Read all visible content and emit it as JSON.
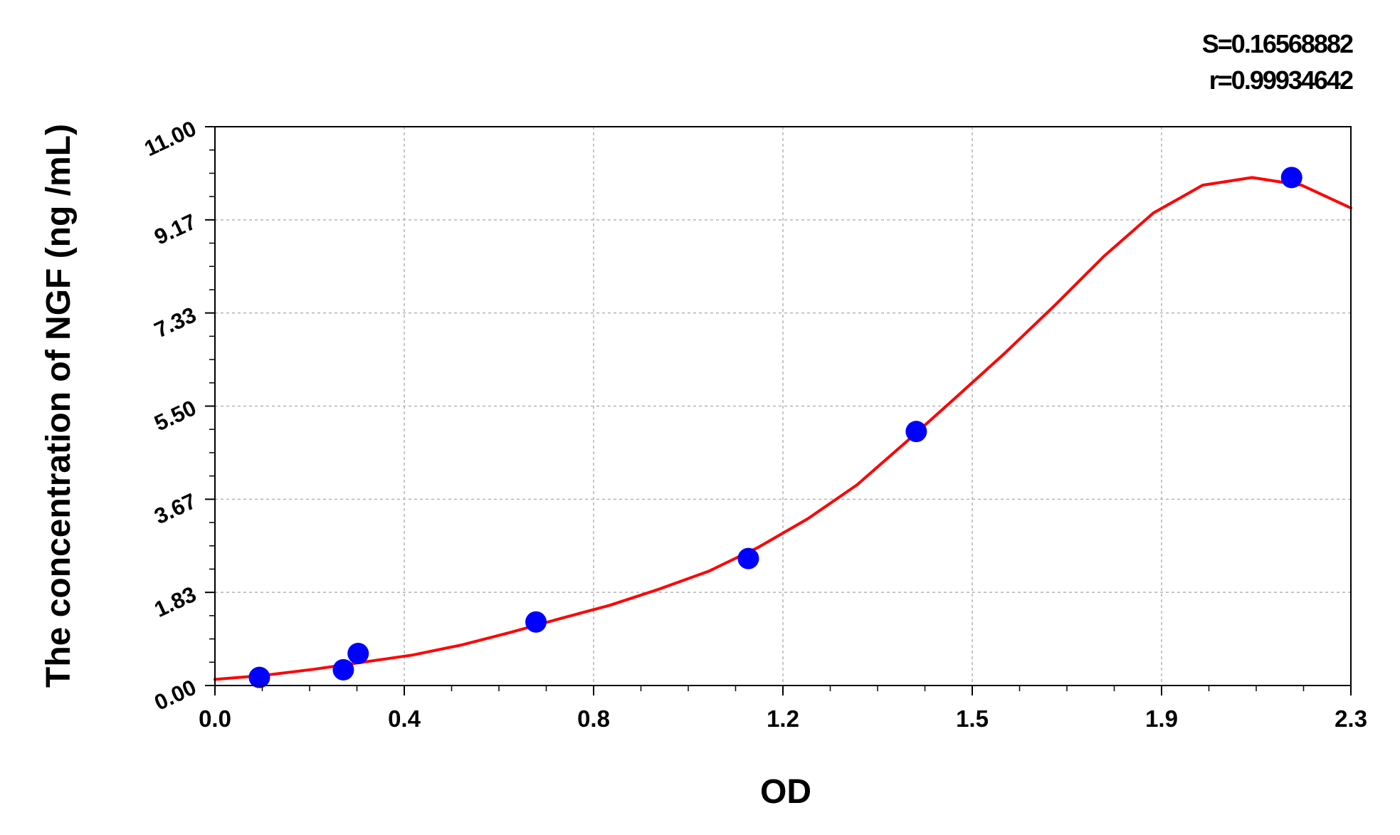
{
  "chart_data": {
    "type": "scatter",
    "xlabel": "OD",
    "ylabel": "The concentration of NGF (ng /mL)",
    "xlim": [
      0.0,
      2.3
    ],
    "ylim": [
      0.0,
      11.0
    ],
    "x_ticks": [
      "0.0",
      "0.4",
      "0.8",
      "1.2",
      "1.5",
      "1.9",
      "2.3"
    ],
    "y_ticks": [
      "0.00",
      "1.83",
      "3.67",
      "5.50",
      "7.33",
      "9.17",
      "11.00"
    ],
    "grid": true,
    "stats": {
      "s": "S=0.16568882",
      "r": "r=0.99934642"
    },
    "points": [
      {
        "x": 0.09,
        "y": 0.16
      },
      {
        "x": 0.26,
        "y": 0.31
      },
      {
        "x": 0.29,
        "y": 0.63
      },
      {
        "x": 0.65,
        "y": 1.25
      },
      {
        "x": 1.08,
        "y": 2.5
      },
      {
        "x": 1.42,
        "y": 5.0
      },
      {
        "x": 2.18,
        "y": 10.0
      }
    ],
    "fit_curve": {
      "x": [
        0.0,
        0.1,
        0.2,
        0.3,
        0.4,
        0.5,
        0.6,
        0.7,
        0.8,
        0.9,
        1.0,
        1.1,
        1.2,
        1.3,
        1.4,
        1.5,
        1.6,
        1.7,
        1.8,
        1.9,
        2.0,
        2.1,
        2.2,
        2.3
      ],
      "y": [
        0.12,
        0.2,
        0.32,
        0.46,
        0.6,
        0.8,
        1.05,
        1.32,
        1.58,
        1.9,
        2.25,
        2.72,
        3.28,
        3.95,
        4.8,
        5.67,
        6.55,
        7.48,
        8.45,
        9.3,
        9.85,
        10.0,
        9.85,
        9.4
      ]
    },
    "colors": {
      "points": "#0000ff",
      "curve": "#ff0000",
      "grid": "#b4b4b4",
      "axis": "#000000"
    }
  }
}
